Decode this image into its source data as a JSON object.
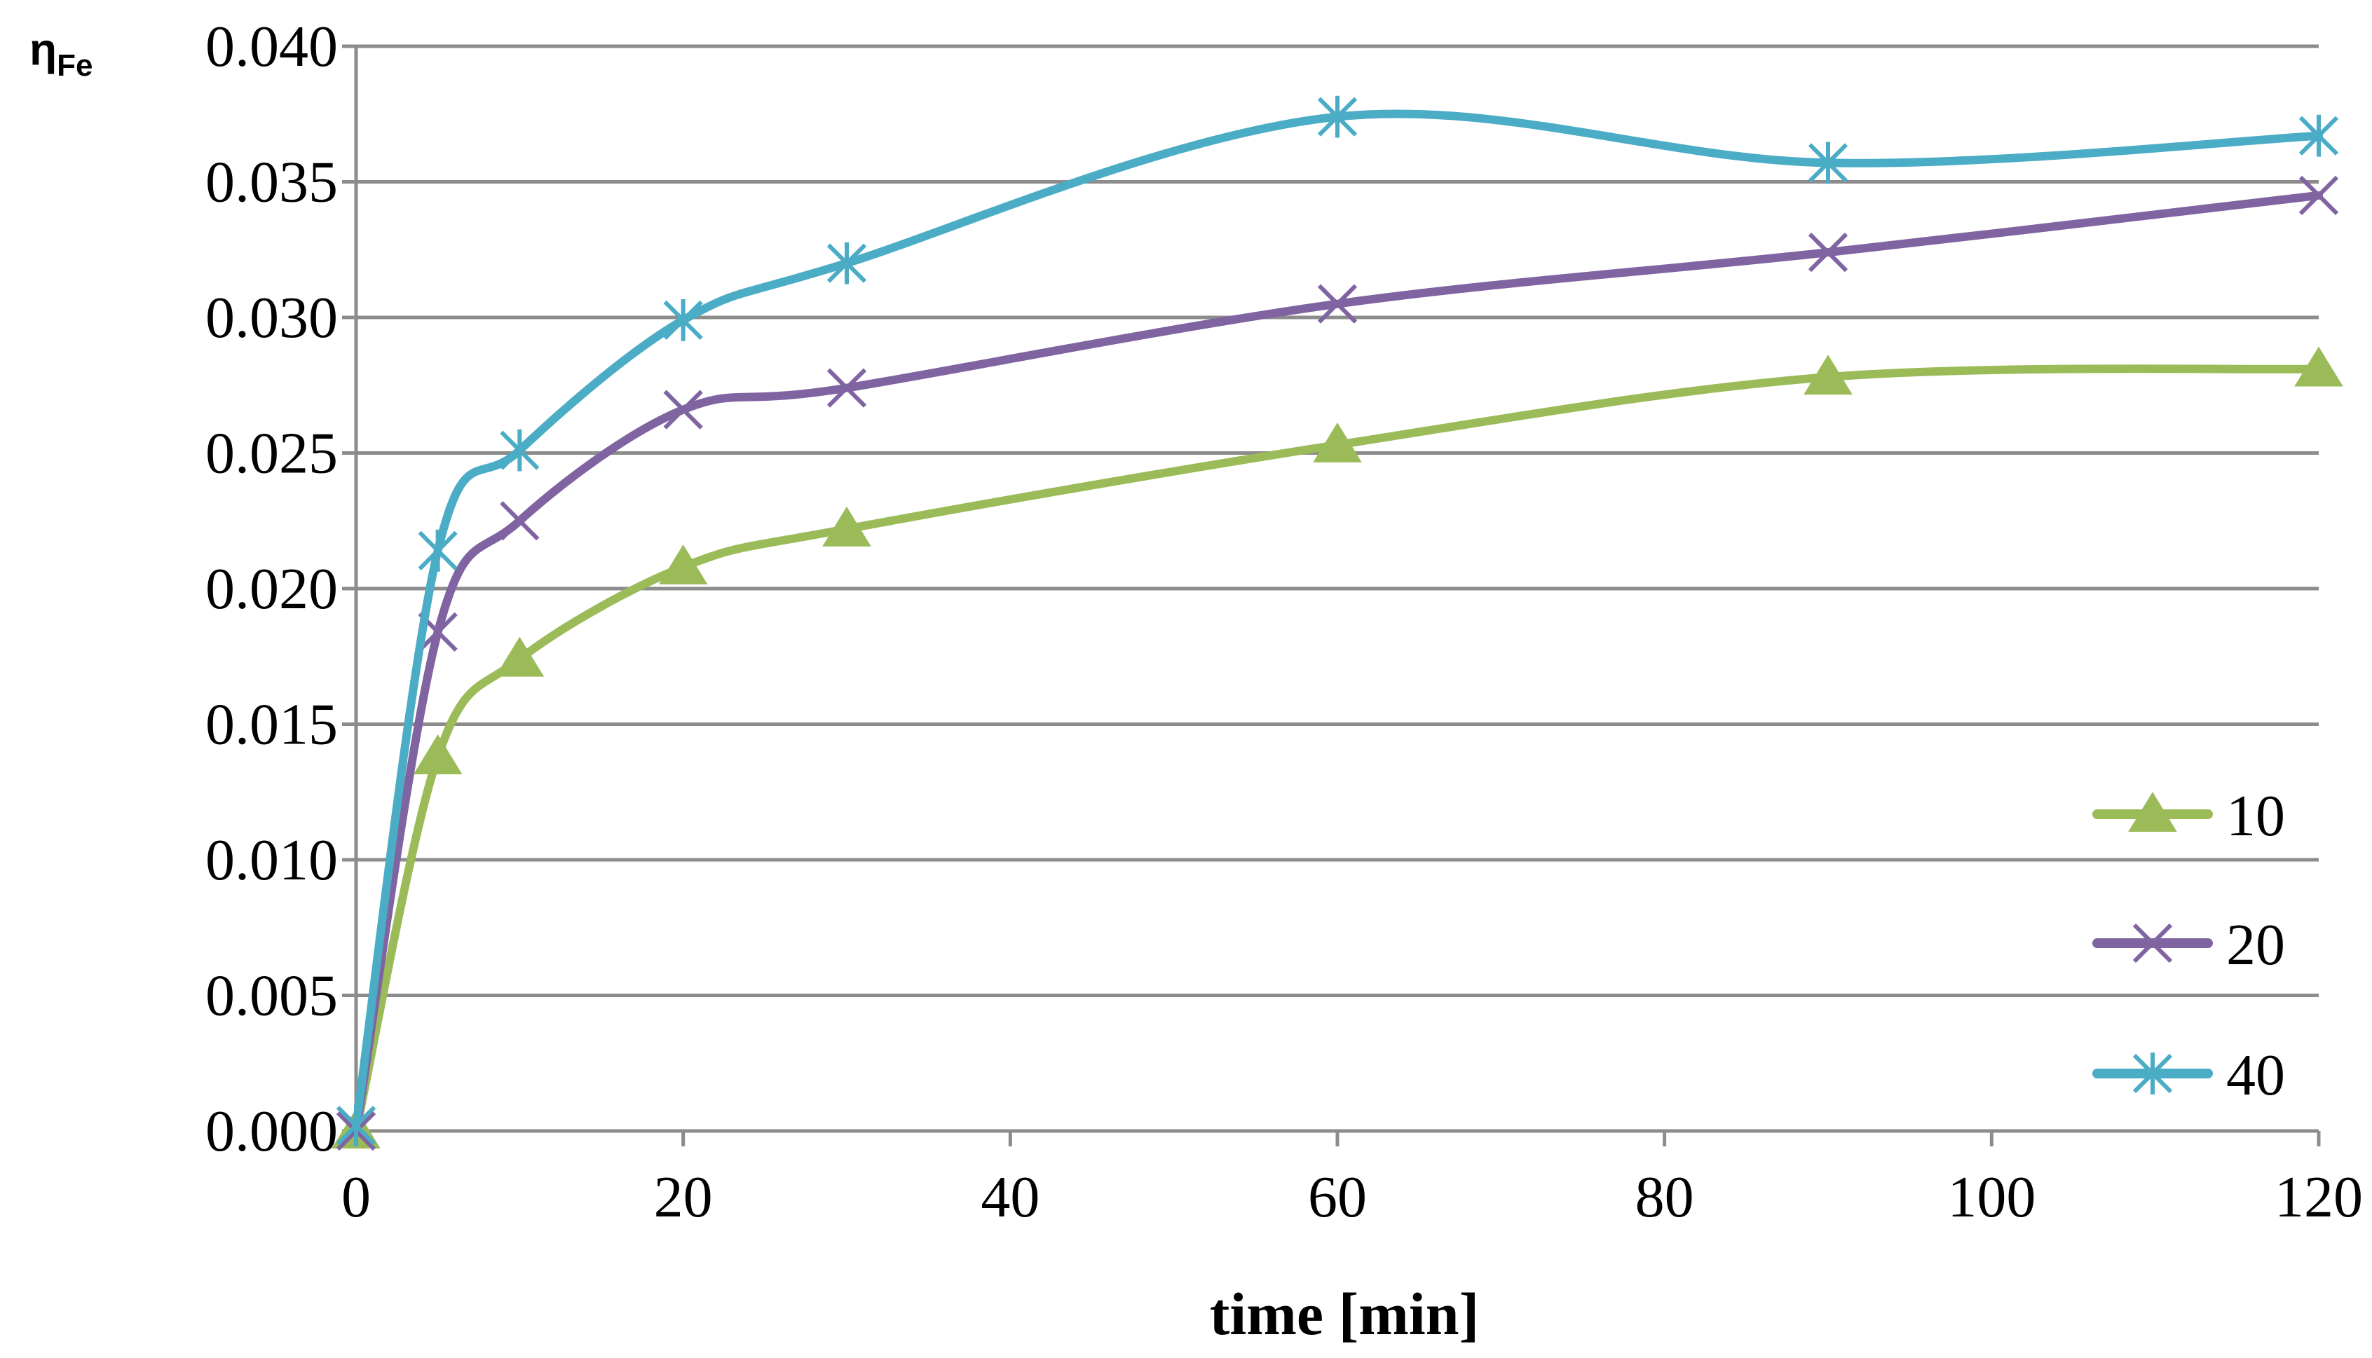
{
  "chart_data": {
    "type": "line",
    "title": "",
    "xlabel": "time [min]",
    "ylabel": {
      "main": "η",
      "sub": "Fe"
    },
    "xlim": [
      0,
      120
    ],
    "ylim": [
      0,
      0.04
    ],
    "xticks": [
      0,
      20,
      40,
      60,
      80,
      100,
      120
    ],
    "yticks": [
      0.0,
      0.005,
      0.01,
      0.015,
      0.02,
      0.025,
      0.03,
      0.035,
      0.04
    ],
    "ytick_decimals": 3,
    "grid": "horizontal",
    "legend_position": "lower-right",
    "x": [
      0,
      5,
      10,
      20,
      30,
      60,
      90,
      120
    ],
    "series": [
      {
        "name": "10",
        "color": "#9BBB59",
        "marker": "triangle",
        "values": [
          0.0,
          0.0138,
          0.0174,
          0.0208,
          0.0222,
          0.0253,
          0.0278,
          0.0281
        ]
      },
      {
        "name": "20",
        "color": "#8064A2",
        "marker": "x",
        "values": [
          0.0,
          0.0184,
          0.0225,
          0.0266,
          0.0274,
          0.0305,
          0.0324,
          0.0345
        ]
      },
      {
        "name": "40",
        "color": "#4BACC6",
        "marker": "asterisk",
        "values": [
          0.0002,
          0.0214,
          0.0251,
          0.0299,
          0.032,
          0.0374,
          0.0357,
          0.0367
        ]
      }
    ]
  }
}
